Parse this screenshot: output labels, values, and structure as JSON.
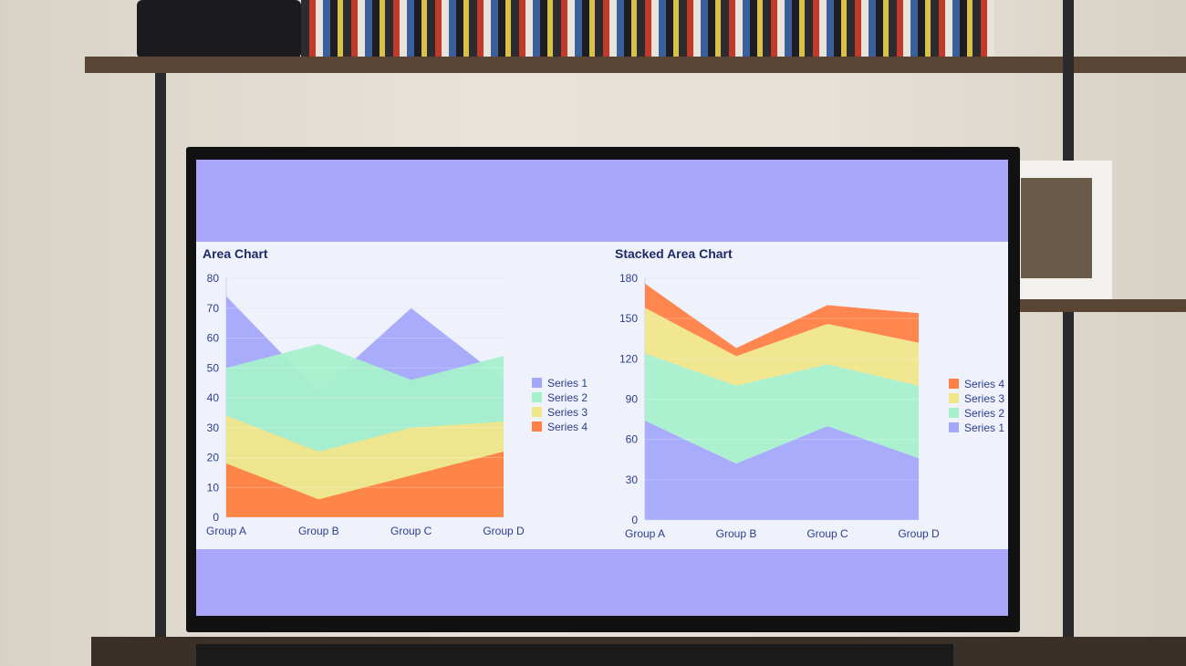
{
  "chart_data": [
    {
      "type": "area",
      "title": "Area Chart",
      "stacked": false,
      "categories": [
        "Group A",
        "Group B",
        "Group C",
        "Group D"
      ],
      "ylim": [
        0,
        80
      ],
      "yticks": [
        0,
        10,
        20,
        30,
        40,
        50,
        60,
        70,
        80
      ],
      "grid": true,
      "legend_position": "right",
      "legend_order": [
        "Series 1",
        "Series 2",
        "Series 3",
        "Series 4"
      ],
      "series": [
        {
          "name": "Series 1",
          "color": "#a3a8fb",
          "values": [
            74,
            42,
            70,
            46
          ]
        },
        {
          "name": "Series 2",
          "color": "#a6f0cc",
          "values": [
            50,
            58,
            46,
            54
          ]
        },
        {
          "name": "Series 3",
          "color": "#f0e68a",
          "values": [
            34,
            22,
            30,
            32
          ]
        },
        {
          "name": "Series 4",
          "color": "#ff7f45",
          "values": [
            18,
            6,
            14,
            22
          ]
        }
      ]
    },
    {
      "type": "area",
      "title": "Stacked Area Chart",
      "stacked": true,
      "categories": [
        "Group A",
        "Group B",
        "Group C",
        "Group D"
      ],
      "ylim": [
        0,
        180
      ],
      "yticks": [
        0,
        30,
        60,
        90,
        120,
        150,
        180
      ],
      "grid": true,
      "legend_position": "right",
      "legend_order": [
        "Series 4",
        "Series 3",
        "Series 2",
        "Series 1"
      ],
      "series": [
        {
          "name": "Series 1",
          "color": "#a3a8fb",
          "values": [
            74,
            42,
            70,
            46
          ]
        },
        {
          "name": "Series 2",
          "color": "#a6f0cc",
          "values": [
            50,
            58,
            46,
            54
          ]
        },
        {
          "name": "Series 3",
          "color": "#f0e68a",
          "values": [
            34,
            22,
            30,
            32
          ]
        },
        {
          "name": "Series 4",
          "color": "#ff7f45",
          "values": [
            18,
            6,
            14,
            22
          ]
        }
      ]
    }
  ]
}
